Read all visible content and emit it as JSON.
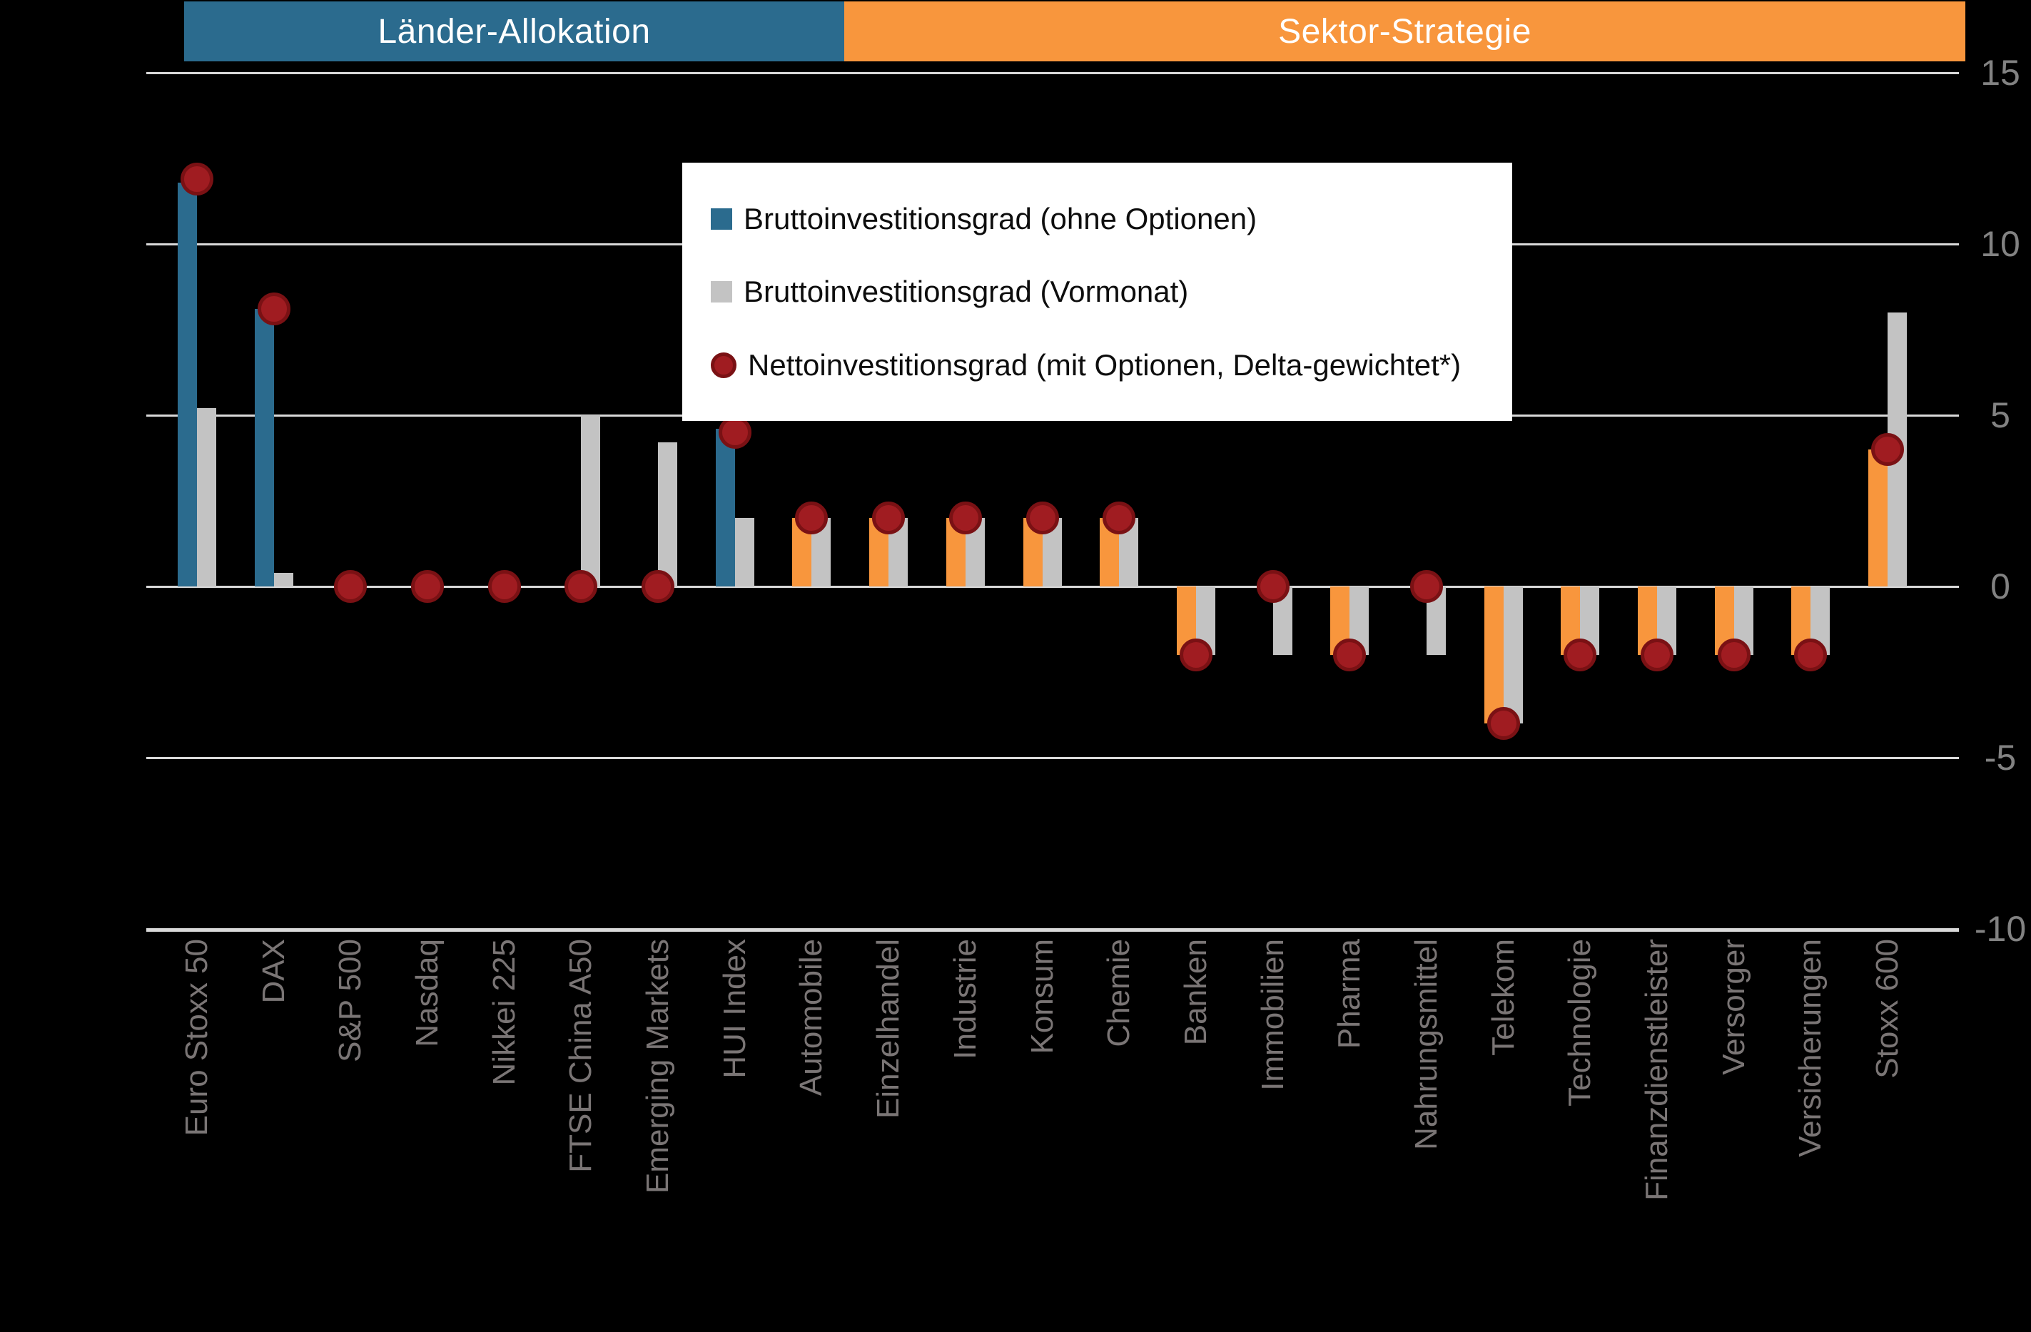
{
  "header": {
    "group_bands": [
      {
        "id": "laender",
        "label": "Länder-Allokation",
        "color": "#2B6B8E",
        "text_color": "#FFFFFF"
      },
      {
        "id": "sektor",
        "label": "Sektor-Strategie",
        "color": "#F8963D",
        "text_color": "#FFFFFF"
      }
    ]
  },
  "legend": {
    "items": [
      {
        "label": "Bruttoinvestitionsgrad (ohne Optionen)",
        "marker": "square",
        "color": "#2B6B8E"
      },
      {
        "label": "Bruttoinvestitionsgrad (Vormonat)",
        "marker": "square",
        "color": "#C3C3C3"
      },
      {
        "label": "Nettoinvestitionsgrad (mit Optionen, Delta-gewichtet*)",
        "marker": "circle",
        "color": "#A01C21"
      }
    ]
  },
  "chart_data": {
    "type": "bar",
    "title": "",
    "categories": [
      "Euro Stoxx 50",
      "DAX",
      "S&P 500",
      "Nasdaq",
      "Nikkei 225",
      "FTSE China A50",
      "Emerging Markets",
      "HUI Index",
      "Automobile",
      "Einzelhandel",
      "Industrie",
      "Konsum",
      "Chemie",
      "Banken",
      "Immobilien",
      "Pharma",
      "Nahrungsmittel",
      "Telekom",
      "Technologie",
      "Finanzdienstleister",
      "Versorger",
      "Versicherungen",
      "Stoxx 600"
    ],
    "category_groups": [
      "laender",
      "laender",
      "laender",
      "laender",
      "laender",
      "laender",
      "laender",
      "laender",
      "sektor",
      "sektor",
      "sektor",
      "sektor",
      "sektor",
      "sektor",
      "sektor",
      "sektor",
      "sektor",
      "sektor",
      "sektor",
      "sektor",
      "sektor",
      "sektor",
      "sektor"
    ],
    "series": [
      {
        "name": "Bruttoinvestitionsgrad (ohne Optionen)",
        "type": "bar",
        "color_by_group": {
          "laender": "#2B6B8E",
          "sektor": "#F8963D"
        },
        "values": [
          11.8,
          8.1,
          0,
          0,
          0,
          0,
          0,
          4.6,
          2,
          2,
          2,
          2,
          2,
          -2,
          0,
          -2,
          0,
          -4,
          -2,
          -2,
          -2,
          -2,
          4
        ]
      },
      {
        "name": "Bruttoinvestitionsgrad (Vormonat)",
        "type": "bar",
        "color": "#C3C3C3",
        "values": [
          5.2,
          0.4,
          0,
          0,
          0,
          5,
          4.2,
          2,
          2,
          2,
          2,
          2,
          2,
          -2,
          -2,
          -2,
          -2,
          -4,
          -2,
          -2,
          -2,
          -2,
          8
        ]
      },
      {
        "name": "Nettoinvestitionsgrad (mit Optionen, Delta-gewichtet*)",
        "type": "point",
        "color": "#A01C21",
        "values": [
          11.9,
          8.1,
          0,
          0,
          0,
          0,
          0,
          4.5,
          2,
          2,
          2,
          2,
          2,
          -2,
          0,
          -2,
          0,
          -4,
          -2,
          -2,
          -2,
          -2,
          4
        ]
      }
    ],
    "ylim": [
      -10,
      15
    ],
    "yticks": [
      15,
      10,
      5,
      0,
      -5,
      -10
    ],
    "grid": true,
    "legend_position": "top-center-overlay",
    "colors": {
      "background": "#000000",
      "gridline": "#D9D9D9",
      "y_tick_label": "#828282",
      "x_tick_label": "#7A7575",
      "point_border": "#7A1114"
    }
  }
}
